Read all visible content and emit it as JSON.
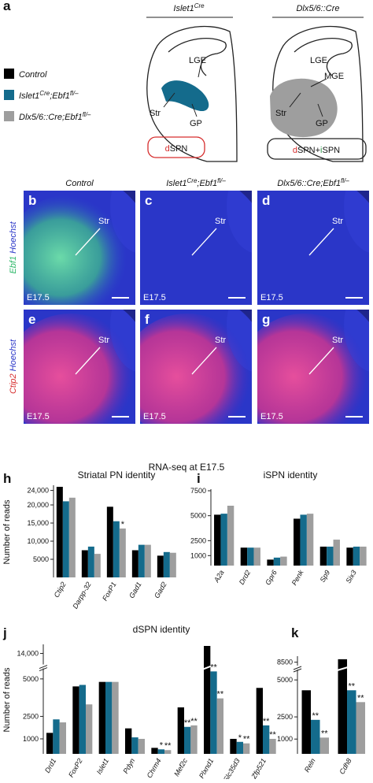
{
  "panel_a": {
    "letter": "a",
    "headers": [
      [
        "Islet1",
        "Cre"
      ],
      [
        "Dlx5/6::Cre"
      ]
    ],
    "legend": [
      [
        "Control"
      ],
      [
        "Islet1",
        "Cre",
        ";Ebf1",
        "fl/–"
      ],
      [
        "Dlx5/6::Cre;Ebf1",
        "fl/–"
      ]
    ],
    "diagram_labels": {
      "left": [
        "LGE",
        "Str",
        "GP"
      ],
      "right": [
        "LGE",
        "MGE",
        "Str",
        "GP"
      ]
    },
    "boxes": [
      [
        "d",
        "SPN"
      ],
      [
        "d",
        "SPN+",
        "i",
        "SPN"
      ]
    ]
  },
  "images": {
    "columns": [
      [
        "Control"
      ],
      [
        "Islet1",
        "Cre",
        ";Ebf1",
        "fl/–"
      ],
      [
        "Dlx5/6::Cre;Ebf1",
        "fl/–"
      ]
    ],
    "rows": [
      [
        "Ebf1",
        " Hoechst"
      ],
      [
        "Ctip2",
        " Hoechst"
      ]
    ],
    "panels": [
      {
        "letter": "b",
        "region": "Str",
        "stage": "E17.5"
      },
      {
        "letter": "c",
        "region": "Str",
        "stage": "E17.5"
      },
      {
        "letter": "d",
        "region": "Str",
        "stage": "E17.5"
      },
      {
        "letter": "e",
        "region": "Str",
        "stage": "E17.5"
      },
      {
        "letter": "f",
        "region": "Str",
        "stage": "E17.5"
      },
      {
        "letter": "g",
        "region": "Str",
        "stage": "E17.5"
      }
    ]
  },
  "section_title": "RNA-seq at E17.5",
  "chart_data": [
    {
      "type": "bar",
      "panel": "h",
      "title": "Striatal PN identity",
      "ylabel": "Number of reads",
      "categories": [
        "Ctip2",
        "Darpp-32",
        "FoxP1",
        "Gad1",
        "Gad2"
      ],
      "series": [
        {
          "color": "#000000",
          "values": [
            25000,
            7500,
            19500,
            7500,
            6000
          ]
        },
        {
          "color": "#146b8c",
          "values": [
            21000,
            8500,
            15500,
            9000,
            7000
          ]
        },
        {
          "color": "#9e9e9e",
          "values": [
            22000,
            6500,
            13500,
            9000,
            6800
          ],
          "significance": [
            null,
            null,
            "*",
            null,
            null
          ]
        }
      ],
      "ylim": [
        0,
        25000
      ],
      "yticks": [
        5000,
        {
          "value": 10000,
          "label": "10,000"
        },
        {
          "value": 15000,
          "label": "15,000"
        },
        {
          "value": 20000,
          "label": "20,000"
        },
        {
          "value": 24000,
          "label": "24,000"
        }
      ]
    },
    {
      "type": "bar",
      "panel": "i",
      "title": "iSPN identity",
      "categories": [
        "A2a",
        "Drd2",
        "Gpr6",
        "Penk",
        "Sp9",
        "Six3"
      ],
      "series": [
        {
          "color": "#000000",
          "values": [
            5100,
            1800,
            600,
            4700,
            1900,
            1800
          ]
        },
        {
          "color": "#146b8c",
          "values": [
            5200,
            1800,
            800,
            5100,
            1900,
            1900
          ]
        },
        {
          "color": "#9e9e9e",
          "values": [
            6000,
            1800,
            900,
            5200,
            2600,
            1900
          ]
        }
      ],
      "ylim": [
        0,
        7500
      ],
      "yticks": [
        1000,
        2500,
        5000,
        7500
      ]
    },
    {
      "type": "bar",
      "panel": "j",
      "title": "dSPN identity",
      "ylabel": "Number of reads",
      "categories": [
        "Drd1",
        "FoxP2",
        "Islet1",
        "Pdyn",
        "Chrm4",
        "Mef2c",
        "Plxnd1",
        "Slc35d3",
        "Zfp521"
      ],
      "series": [
        {
          "color": "#000000",
          "values": [
            1400,
            4500,
            4800,
            1700,
            400,
            3100,
            14500,
            1000,
            4400
          ]
        },
        {
          "color": "#146b8c",
          "values": [
            2300,
            4600,
            4800,
            1100,
            300,
            1800,
            5500,
            800,
            1900
          ],
          "significance": [
            null,
            null,
            null,
            null,
            "*",
            "**",
            "**",
            "*",
            "**"
          ]
        },
        {
          "color": "#9e9e9e",
          "values": [
            2100,
            3300,
            4800,
            1000,
            250,
            1900,
            3700,
            700,
            1000
          ],
          "significance": [
            null,
            null,
            null,
            null,
            "**",
            "**",
            "**",
            "**",
            "**"
          ]
        }
      ],
      "ylim": [
        0,
        14500
      ],
      "axis_break": [
        5700,
        13000
      ],
      "yticks": [
        1000,
        2500,
        5000,
        {
          "value": 14000,
          "label": "14,000"
        }
      ]
    },
    {
      "type": "bar",
      "panel": "k",
      "categories": [
        "Reln",
        "Cdh8"
      ],
      "series": [
        {
          "color": "#000000",
          "values": [
            4300,
            8700
          ]
        },
        {
          "color": "#146b8c",
          "values": [
            2300,
            4300
          ],
          "significance": [
            "**",
            "**"
          ]
        },
        {
          "color": "#9e9e9e",
          "values": [
            1100,
            3500
          ],
          "significance": [
            "**",
            "**"
          ]
        }
      ],
      "ylim": [
        0,
        8800
      ],
      "axis_break": [
        5700,
        8000
      ],
      "yticks": [
        1000,
        2500,
        5000,
        8500
      ]
    }
  ]
}
